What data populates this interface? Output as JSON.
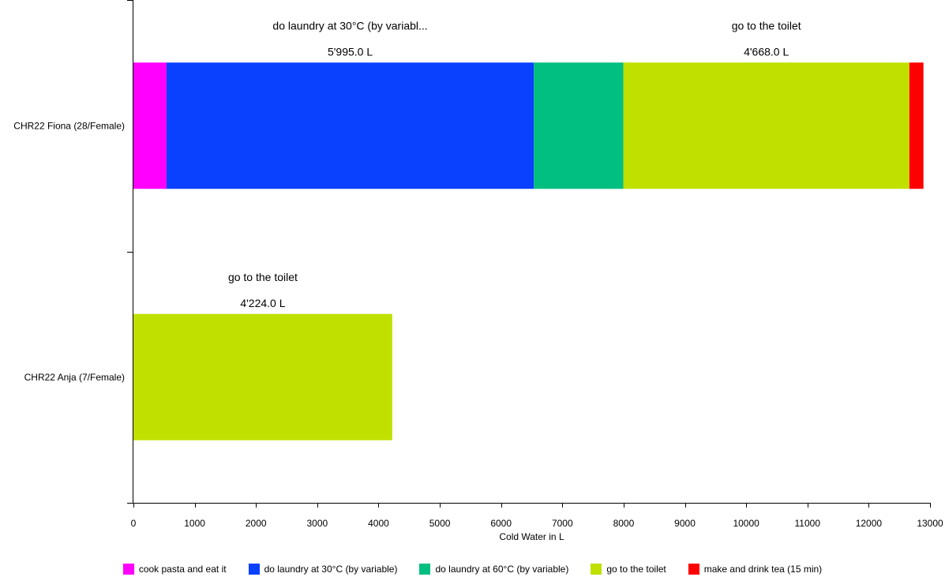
{
  "chart_data": {
    "type": "bar",
    "orientation": "horizontal",
    "stacked": true,
    "xlabel": "Cold Water in L",
    "xlim": [
      0,
      13000
    ],
    "xticks": [
      0,
      1000,
      2000,
      3000,
      4000,
      5000,
      6000,
      7000,
      8000,
      9000,
      10000,
      11000,
      12000,
      13000
    ],
    "categories": [
      "CHR22 Fiona (28/Female)",
      "CHR22 Anja (7/Female)"
    ],
    "series": [
      {
        "name": "cook pasta and eat it",
        "color": "#ff00ff",
        "values": [
          540,
          0
        ]
      },
      {
        "name": "do laundry at 30°C (by variable)",
        "color": "#0a40ff",
        "values": [
          5995,
          0
        ]
      },
      {
        "name": "do laundry at 60°C (by variable)",
        "color": "#00bf80",
        "values": [
          1460,
          0
        ]
      },
      {
        "name": "go to the toilet",
        "color": "#c0e000",
        "values": [
          4668,
          4224
        ]
      },
      {
        "name": "make and drink tea (15 min)",
        "color": "#ff0000",
        "values": [
          230,
          0
        ]
      }
    ],
    "annotations": [
      {
        "category": 0,
        "series": 1,
        "label": "do laundry at 30°C (by variabl...",
        "value_label": "5'995.0 L"
      },
      {
        "category": 0,
        "series": 3,
        "label": "go to the toilet",
        "value_label": "4'668.0 L"
      },
      {
        "category": 1,
        "series": 3,
        "label": "go to the toilet",
        "value_label": "4'224.0 L"
      }
    ],
    "legend_position": "bottom",
    "grid": false
  }
}
